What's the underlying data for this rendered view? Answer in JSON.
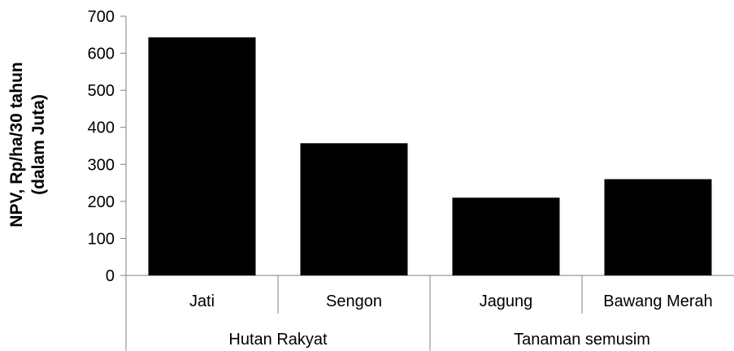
{
  "chart_data": {
    "type": "bar",
    "title": "",
    "xlabel": "",
    "ylabel_lines": [
      "NPV, Rp/ha/30 tahun",
      "(dalam Juta)"
    ],
    "ylim": [
      0,
      700
    ],
    "yticks": [
      0,
      100,
      200,
      300,
      400,
      500,
      600,
      700
    ],
    "categories": [
      "Jati",
      "Sengon",
      "Jagung",
      "Bawang Merah"
    ],
    "values": [
      643,
      357,
      210,
      260
    ],
    "groups": [
      {
        "label": "Hutan Rakyat",
        "categories": [
          "Jati",
          "Sengon"
        ]
      },
      {
        "label": "Tanaman semusim",
        "categories": [
          "Jagung",
          "Bawang Merah"
        ]
      }
    ],
    "bar_color": "#000000",
    "grid": false,
    "legend": "none"
  }
}
